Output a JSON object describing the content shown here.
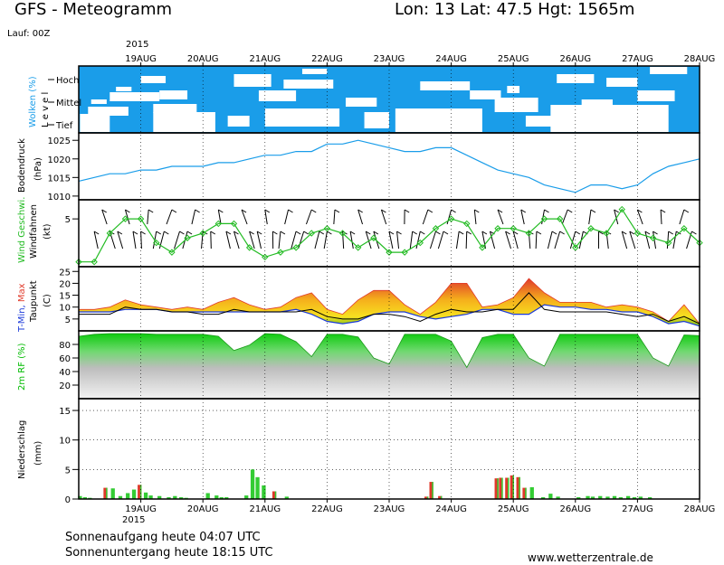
{
  "header": {
    "title": "GFS - Meteogramm",
    "location": "Lon: 13 Lat: 47.5 Hgt: 1565m",
    "run": "Lauf: 00Z",
    "year_top": "2015",
    "year_bottom": "2015"
  },
  "footer": {
    "sunrise": "Sonnenaufgang heute 04:07 UTC",
    "sunset": "Sonnenuntergang heute 18:15 UTC",
    "source": "www.wetterzentrale.de"
  },
  "colors": {
    "cloud_sky": "#1a9de9",
    "pressure_line": "#1a9de9",
    "wind_green": "#22bb22",
    "rh_green": "#00bb00",
    "precip_green": "#33cc33",
    "precip_red": "#e0382a",
    "tmin_blue": "#1a39d9",
    "tmax_red": "#e03a2a"
  },
  "chart_data": [
    {
      "type": "area",
      "panel": "clouds",
      "ylabel": "Wolken (%)",
      "ylabel2": "L e v e l",
      "levels": [
        "Hoch",
        "Mittel",
        "Tief"
      ],
      "x": [
        "19AUG",
        "20AUG",
        "21AUG",
        "22AUG",
        "23AUG",
        "24AUG",
        "25AUG",
        "26AUG",
        "27AUG",
        "28AUG"
      ]
    },
    {
      "type": "line",
      "panel": "pressure",
      "ylabel": "Bodendruck",
      "ylabel2": "(hPa)",
      "ylim": [
        1009,
        1027
      ],
      "yticks": [
        1010,
        1015,
        1020,
        1025
      ],
      "x_days": [
        0,
        0.25,
        0.5,
        0.75,
        1,
        1.25,
        1.5,
        1.75,
        2,
        2.25,
        2.5,
        2.75,
        3,
        3.25,
        3.5,
        3.75,
        4,
        4.25,
        4.5,
        4.75,
        5,
        5.25,
        5.5,
        5.75,
        6,
        6.25,
        6.5,
        6.75,
        7,
        7.25,
        7.5,
        7.75,
        8,
        8.25,
        8.5,
        8.75,
        9,
        9.25,
        9.5,
        9.75,
        10
      ],
      "values": [
        1014,
        1015,
        1016,
        1016,
        1017,
        1017,
        1018,
        1018,
        1018,
        1019,
        1019,
        1020,
        1021,
        1021,
        1022,
        1022,
        1024,
        1024,
        1025,
        1024,
        1023,
        1022,
        1022,
        1023,
        1023,
        1021,
        1019,
        1017,
        1016,
        1015,
        1013,
        1012,
        1011,
        1013,
        1013,
        1012,
        1013,
        1016,
        1018,
        1019,
        1020
      ],
      "x_start": "18AUG 12Z"
    },
    {
      "type": "line",
      "panel": "wind",
      "ylabel": "Wind Geschwi.",
      "ylabel2": "Windfahnen",
      "ylabel3": "(kt)",
      "ylim": [
        0,
        7
      ],
      "yticks": [
        5
      ],
      "x_days": [
        0,
        0.25,
        0.5,
        0.75,
        1,
        1.25,
        1.5,
        1.75,
        2,
        2.25,
        2.5,
        2.75,
        3,
        3.25,
        3.5,
        3.75,
        4,
        4.25,
        4.5,
        4.75,
        5,
        5.25,
        5.5,
        5.75,
        6,
        6.25,
        6.5,
        6.75,
        7,
        7.25,
        7.5,
        7.75,
        8,
        8.25,
        8.5,
        8.75,
        9,
        9.25,
        9.5,
        9.75,
        10
      ],
      "values": [
        0.5,
        0.5,
        3.5,
        5,
        5,
        2.5,
        1.5,
        3,
        3.5,
        4.5,
        4.5,
        2,
        1,
        1.5,
        2,
        3.5,
        4,
        3.5,
        2,
        3,
        1.5,
        1.5,
        2.5,
        4,
        5,
        4.5,
        2,
        4,
        4,
        3.5,
        5,
        5,
        2,
        4,
        3.5,
        6,
        3.5,
        3,
        2.5,
        4,
        2.5
      ]
    },
    {
      "type": "area",
      "panel": "temperature",
      "ylabel": "T-Min, Max",
      "ylabel2": "Taupunkt",
      "ylabel3": "(C)",
      "ylim": [
        0,
        27
      ],
      "yticks": [
        5,
        10,
        15,
        20,
        25
      ],
      "x_days": [
        0,
        0.25,
        0.5,
        0.75,
        1,
        1.25,
        1.5,
        1.75,
        2,
        2.25,
        2.5,
        2.75,
        3,
        3.25,
        3.5,
        3.75,
        4,
        4.25,
        4.5,
        4.75,
        5,
        5.25,
        5.5,
        5.75,
        6,
        6.25,
        6.5,
        6.75,
        7,
        7.25,
        7.5,
        7.75,
        8,
        8.25,
        8.5,
        8.75,
        9,
        9.25,
        9.5,
        9.75,
        10
      ],
      "series": [
        {
          "name": "Max",
          "values": [
            9,
            9,
            10,
            13,
            11,
            10,
            9,
            10,
            9,
            12,
            14,
            11,
            9,
            10,
            14,
            16,
            9,
            7,
            13,
            17,
            17,
            11,
            7,
            12,
            20,
            20,
            10,
            11,
            14,
            22,
            16,
            12,
            12,
            12,
            10,
            11,
            10,
            8,
            4,
            11,
            3
          ]
        },
        {
          "name": "Min",
          "values": [
            8,
            8,
            8,
            9,
            9,
            9,
            8,
            8,
            8,
            8,
            8,
            8,
            8,
            8,
            9,
            7,
            4,
            3,
            4,
            7,
            8,
            8,
            6,
            5,
            6,
            7,
            9,
            9,
            7,
            7,
            11,
            10,
            10,
            9,
            9,
            8,
            8,
            6,
            3,
            4,
            2
          ]
        },
        {
          "name": "Taupunkt",
          "values": [
            7,
            7,
            7,
            10,
            9,
            9,
            8,
            8,
            7,
            7,
            9,
            8,
            8,
            8,
            8,
            9,
            6,
            5,
            5,
            7,
            7,
            6,
            4,
            7,
            9,
            8,
            8,
            9,
            9,
            16,
            9,
            8,
            8,
            8,
            8,
            7,
            6,
            7,
            4,
            6,
            3
          ]
        }
      ]
    },
    {
      "type": "area",
      "panel": "humidity",
      "ylabel": "2m RF (%)",
      "ylim": [
        0,
        100
      ],
      "yticks": [
        20,
        40,
        60,
        80
      ],
      "x_days": [
        0,
        0.25,
        0.5,
        0.75,
        1,
        1.25,
        1.5,
        1.75,
        2,
        2.25,
        2.5,
        2.75,
        3,
        3.25,
        3.5,
        3.75,
        4,
        4.25,
        4.5,
        4.75,
        5,
        5.25,
        5.5,
        5.75,
        6,
        6.25,
        6.5,
        6.75,
        7,
        7.25,
        7.5,
        7.75,
        8,
        8.25,
        8.5,
        8.75,
        9,
        9.25,
        9.5,
        9.75,
        10
      ],
      "values": [
        92,
        95,
        96,
        96,
        96,
        95,
        95,
        95,
        95,
        92,
        71,
        79,
        96,
        95,
        84,
        62,
        95,
        95,
        91,
        60,
        51,
        95,
        95,
        95,
        85,
        46,
        90,
        95,
        95,
        60,
        48,
        95,
        95,
        95,
        95,
        95,
        95,
        60,
        48,
        94,
        93
      ]
    },
    {
      "type": "bar",
      "panel": "precipitation",
      "ylabel": "Niederschlag",
      "ylabel2": "(mm)",
      "ylim": [
        0,
        17
      ],
      "yticks": [
        0,
        5,
        10,
        15
      ],
      "bar_width_days": 0.0625,
      "x_days": [
        0.02,
        0.1,
        0.18,
        0.43,
        0.55,
        0.67,
        0.79,
        0.89,
        0.98,
        1.08,
        1.16,
        1.3,
        1.45,
        1.55,
        1.65,
        1.73,
        2.08,
        2.22,
        2.3,
        2.38,
        2.7,
        2.8,
        2.88,
        2.98,
        3.15,
        3.35,
        5.6,
        5.68,
        5.82,
        6.73,
        6.8,
        6.9,
        6.98,
        7.08,
        7.18,
        7.3,
        7.48,
        7.6,
        7.72,
        8.05,
        8.2,
        8.28,
        8.4,
        8.52,
        8.63,
        8.73,
        8.85,
        8.95,
        9.05,
        9.2
      ],
      "values": [
        0.5,
        0.3,
        0.2,
        1.9,
        1.8,
        0.5,
        1.0,
        1.6,
        2.4,
        1.1,
        0.6,
        0.5,
        0.3,
        0.5,
        0.3,
        0.2,
        1.0,
        0.6,
        0.3,
        0.3,
        0.6,
        5.0,
        3.7,
        2.3,
        1.3,
        0.4,
        0.4,
        2.9,
        0.5,
        3.5,
        3.6,
        3.6,
        4.0,
        3.7,
        1.9,
        2.0,
        0.3,
        0.9,
        0.4,
        0.3,
        0.5,
        0.4,
        0.5,
        0.4,
        0.5,
        0.3,
        0.5,
        0.3,
        0.4,
        0.3
      ],
      "colors": [
        "g",
        "g",
        "g",
        "r",
        "g",
        "g",
        "g",
        "g",
        "r",
        "g",
        "g",
        "g",
        "g",
        "g",
        "g",
        "g",
        "g",
        "g",
        "g",
        "g",
        "g",
        "g",
        "g",
        "g",
        "r",
        "g",
        "r",
        "r",
        "r",
        "r",
        "r",
        "r",
        "r",
        "r",
        "r",
        "g",
        "g",
        "g",
        "g",
        "g",
        "g",
        "g",
        "g",
        "g",
        "g",
        "g",
        "g",
        "g",
        "g",
        "g"
      ]
    }
  ]
}
